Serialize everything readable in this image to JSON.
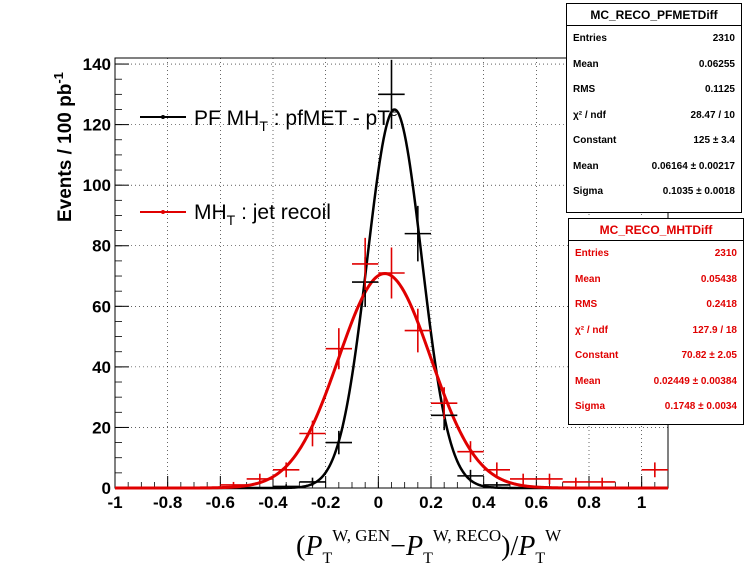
{
  "chart_data": {
    "type": "line",
    "xlabel": "(P_T^{W,GEN} - P_T^{W,RECO}) / P_T^W",
    "ylabel": "Events / 100 pb",
    "ylabel_sup": "-1",
    "xlim": [
      -1.0,
      1.1
    ],
    "ylim": [
      0,
      142
    ],
    "xticks": [
      "-1",
      "-0.8",
      "-0.6",
      "-0.4",
      "-0.2",
      "0",
      "0.2",
      "0.4",
      "0.6",
      "0.8",
      "1"
    ],
    "yticks": [
      "0",
      "20",
      "40",
      "60",
      "80",
      "100",
      "120",
      "140"
    ],
    "grid": true,
    "legend_placement": "top-left",
    "series": [
      {
        "name": "PF MH_T : pfMET - pT^e",
        "color": "#000000",
        "fit_constant": 125,
        "fit_mean": 0.06164,
        "fit_sigma": 0.1035,
        "points": [
          {
            "x": -0.35,
            "y": 0.5
          },
          {
            "x": -0.25,
            "y": 2
          },
          {
            "x": -0.15,
            "y": 15
          },
          {
            "x": -0.05,
            "y": 68
          },
          {
            "x": 0.05,
            "y": 130
          },
          {
            "x": 0.15,
            "y": 84
          },
          {
            "x": 0.25,
            "y": 24
          },
          {
            "x": 0.35,
            "y": 4
          },
          {
            "x": 0.45,
            "y": 1
          }
        ]
      },
      {
        "name": "MH_T : jet recoil",
        "color": "#e00000",
        "fit_constant": 70.82,
        "fit_mean": 0.02449,
        "fit_sigma": 0.1748,
        "points": [
          {
            "x": -0.55,
            "y": 1
          },
          {
            "x": -0.45,
            "y": 3
          },
          {
            "x": -0.35,
            "y": 6
          },
          {
            "x": -0.25,
            "y": 18
          },
          {
            "x": -0.15,
            "y": 46
          },
          {
            "x": -0.05,
            "y": 74
          },
          {
            "x": 0.05,
            "y": 71
          },
          {
            "x": 0.15,
            "y": 52
          },
          {
            "x": 0.25,
            "y": 28
          },
          {
            "x": 0.35,
            "y": 12
          },
          {
            "x": 0.45,
            "y": 6
          },
          {
            "x": 0.55,
            "y": 3
          },
          {
            "x": 0.65,
            "y": 3
          },
          {
            "x": 0.75,
            "y": 2
          },
          {
            "x": 0.85,
            "y": 2
          },
          {
            "x": 1.05,
            "y": 6
          }
        ]
      }
    ]
  },
  "stats": [
    {
      "title": "MC_RECO_PFMETDiff",
      "rows": [
        {
          "label": "Entries",
          "value": "2310"
        },
        {
          "label": "Mean",
          "value": "0.06255"
        },
        {
          "label": "RMS",
          "value": "0.1125"
        },
        {
          "label": "χ² / ndf",
          "value": "28.47 / 10"
        },
        {
          "label": "Constant",
          "value": "125 ± 3.4"
        },
        {
          "label": "Mean",
          "value": "0.06164 ± 0.00217"
        },
        {
          "label": "Sigma",
          "value": "0.1035 ± 0.0018"
        }
      ]
    },
    {
      "title": "MC_RECO_MHTDiff",
      "rows": [
        {
          "label": "Entries",
          "value": "2310"
        },
        {
          "label": "Mean",
          "value": "0.05438"
        },
        {
          "label": "RMS",
          "value": "0.2418"
        },
        {
          "label": "χ² / ndf",
          "value": "127.9 / 18"
        },
        {
          "label": "Constant",
          "value": "70.82 ± 2.05"
        },
        {
          "label": "Mean",
          "value": "0.02449 ± 0.00384"
        },
        {
          "label": "Sigma",
          "value": "0.1748 ± 0.0034"
        }
      ]
    }
  ]
}
